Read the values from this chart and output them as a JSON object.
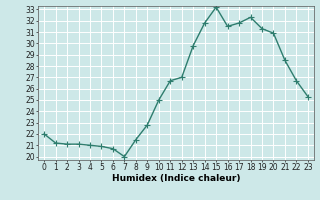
{
  "x": [
    0,
    1,
    2,
    3,
    4,
    5,
    6,
    7,
    8,
    9,
    10,
    11,
    12,
    13,
    14,
    15,
    16,
    17,
    18,
    19,
    20,
    21,
    22,
    23
  ],
  "y": [
    22.0,
    21.2,
    21.1,
    21.1,
    21.0,
    20.9,
    20.7,
    20.0,
    21.5,
    22.8,
    25.0,
    26.7,
    27.0,
    29.8,
    31.8,
    33.2,
    31.5,
    31.8,
    32.3,
    31.3,
    30.9,
    28.5,
    26.7,
    25.3
  ],
  "line_color": "#2e7d6e",
  "marker": "+",
  "marker_size": 4,
  "bg_color": "#cde8e8",
  "grid_color": "#ffffff",
  "xlabel": "Humidex (Indice chaleur)",
  "ylim": [
    20,
    33
  ],
  "xlim": [
    -0.5,
    23.5
  ],
  "yticks": [
    20,
    21,
    22,
    23,
    24,
    25,
    26,
    27,
    28,
    29,
    30,
    31,
    32,
    33
  ],
  "xticks": [
    0,
    1,
    2,
    3,
    4,
    5,
    6,
    7,
    8,
    9,
    10,
    11,
    12,
    13,
    14,
    15,
    16,
    17,
    18,
    19,
    20,
    21,
    22,
    23
  ],
  "xtick_labels": [
    "0",
    "1",
    "2",
    "3",
    "4",
    "5",
    "6",
    "7",
    "8",
    "9",
    "10",
    "11",
    "12",
    "13",
    "14",
    "15",
    "16",
    "17",
    "18",
    "19",
    "20",
    "21",
    "22",
    "23"
  ],
  "label_fontsize": 6.5,
  "tick_fontsize": 5.5,
  "linewidth": 1.0,
  "marker_edge_width": 0.8
}
